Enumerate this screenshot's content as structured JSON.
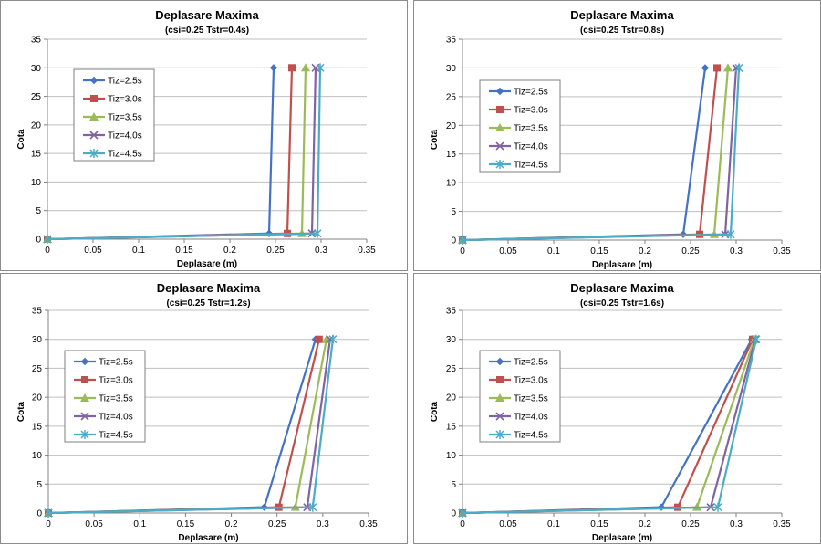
{
  "figure": {
    "styles": [
      {
        "color": "#4472C4",
        "marker": "diamond"
      },
      {
        "color": "#C0504D",
        "marker": "square"
      },
      {
        "color": "#9BBB59",
        "marker": "triangle"
      },
      {
        "color": "#8064A2",
        "marker": "x"
      },
      {
        "color": "#4BACC6",
        "marker": "star"
      }
    ]
  },
  "chart_data": [
    {
      "type": "line",
      "title": "Deplasare Maxima",
      "subtitle": "(csi=0.25  Tstr=0.4s)",
      "xlabel": "Deplasare (m)",
      "ylabel": "Cota",
      "xlim": [
        0,
        0.35
      ],
      "ylim": [
        0,
        35
      ],
      "xticks": [
        "0",
        "0.05",
        "0.1",
        "0.15",
        "0.2",
        "0.25",
        "0.3",
        "0.35"
      ],
      "yticks": [
        "0",
        "5",
        "10",
        "15",
        "20",
        "25",
        "30",
        "35"
      ],
      "grid": "horizontal",
      "legend": "upper-left",
      "series": [
        {
          "name": "Tiz=2.5s",
          "points": [
            [
              0,
              0
            ],
            [
              0.243,
              1
            ],
            [
              0.248,
              30
            ]
          ]
        },
        {
          "name": "Tiz=3.0s",
          "points": [
            [
              0,
              0
            ],
            [
              0.263,
              1
            ],
            [
              0.268,
              30
            ]
          ]
        },
        {
          "name": "Tiz=3.5s",
          "points": [
            [
              0,
              0
            ],
            [
              0.279,
              1
            ],
            [
              0.283,
              30
            ]
          ]
        },
        {
          "name": "Tiz=4.0s",
          "points": [
            [
              0,
              0
            ],
            [
              0.29,
              1
            ],
            [
              0.294,
              30
            ]
          ]
        },
        {
          "name": "Tiz=4.5s",
          "points": [
            [
              0,
              0
            ],
            [
              0.296,
              1
            ],
            [
              0.299,
              30
            ]
          ]
        }
      ]
    },
    {
      "type": "line",
      "title": "Deplasare Maxima",
      "subtitle": "(csi=0.25  Tstr=0.8s)",
      "xlabel": "Deplasare (m)",
      "ylabel": "Cota",
      "xlim": [
        0,
        0.35
      ],
      "ylim": [
        0,
        35
      ],
      "xticks": [
        "0",
        "0.05",
        "0.1",
        "0.15",
        "0.2",
        "0.25",
        "0.3",
        "0.35"
      ],
      "yticks": [
        "0",
        "5",
        "10",
        "15",
        "20",
        "25",
        "30",
        "35"
      ],
      "grid": "horizontal",
      "legend": "upper-left",
      "series": [
        {
          "name": "Tiz=2.5s",
          "points": [
            [
              0,
              0
            ],
            [
              0.242,
              1
            ],
            [
              0.266,
              30
            ]
          ]
        },
        {
          "name": "Tiz=3.0s",
          "points": [
            [
              0,
              0
            ],
            [
              0.26,
              1
            ],
            [
              0.279,
              30
            ]
          ]
        },
        {
          "name": "Tiz=3.5s",
          "points": [
            [
              0,
              0
            ],
            [
              0.276,
              1
            ],
            [
              0.291,
              30
            ]
          ]
        },
        {
          "name": "Tiz=4.0s",
          "points": [
            [
              0,
              0
            ],
            [
              0.288,
              1
            ],
            [
              0.3,
              30
            ]
          ]
        },
        {
          "name": "Tiz=4.5s",
          "points": [
            [
              0,
              0
            ],
            [
              0.294,
              1
            ],
            [
              0.303,
              30
            ]
          ]
        }
      ]
    },
    {
      "type": "line",
      "title": "Deplasare Maxima",
      "subtitle": "(csi=0.25  Tstr=1.2s)",
      "xlabel": "Deplasare (m)",
      "ylabel": "Cota",
      "xlim": [
        0,
        0.35
      ],
      "ylim": [
        0,
        35
      ],
      "xticks": [
        "0",
        "0.05",
        "0.1",
        "0.15",
        "0.2",
        "0.25",
        "0.3",
        "0.35"
      ],
      "yticks": [
        "0",
        "5",
        "10",
        "15",
        "20",
        "25",
        "30",
        "35"
      ],
      "grid": "horizontal",
      "legend": "upper-left",
      "series": [
        {
          "name": "Tiz=2.5s",
          "points": [
            [
              0,
              0
            ],
            [
              0.236,
              1
            ],
            [
              0.292,
              30
            ]
          ]
        },
        {
          "name": "Tiz=3.0s",
          "points": [
            [
              0,
              0
            ],
            [
              0.252,
              1
            ],
            [
              0.296,
              30
            ]
          ]
        },
        {
          "name": "Tiz=3.5s",
          "points": [
            [
              0,
              0
            ],
            [
              0.27,
              1
            ],
            [
              0.304,
              30
            ]
          ]
        },
        {
          "name": "Tiz=4.0s",
          "points": [
            [
              0,
              0
            ],
            [
              0.283,
              1
            ],
            [
              0.308,
              30
            ]
          ]
        },
        {
          "name": "Tiz=4.5s",
          "points": [
            [
              0,
              0
            ],
            [
              0.289,
              1
            ],
            [
              0.311,
              30
            ]
          ]
        }
      ]
    },
    {
      "type": "line",
      "title": "Deplasare Maxima",
      "subtitle": "(csi=0.25  Tstr=1.6s)",
      "xlabel": "Deplasare (m)",
      "ylabel": "Cota",
      "xlim": [
        0,
        0.35
      ],
      "ylim": [
        0,
        35
      ],
      "xticks": [
        "0",
        "0.05",
        "0.1",
        "0.15",
        "0.2",
        "0.25",
        "0.3",
        "0.35"
      ],
      "yticks": [
        "0",
        "5",
        "10",
        "15",
        "20",
        "25",
        "30",
        "35"
      ],
      "grid": "horizontal",
      "legend": "upper-left",
      "series": [
        {
          "name": "Tiz=2.5s",
          "points": [
            [
              0,
              0
            ],
            [
              0.218,
              1
            ],
            [
              0.317,
              30
            ]
          ]
        },
        {
          "name": "Tiz=3.0s",
          "points": [
            [
              0,
              0
            ],
            [
              0.236,
              1
            ],
            [
              0.318,
              30
            ]
          ]
        },
        {
          "name": "Tiz=3.5s",
          "points": [
            [
              0,
              0
            ],
            [
              0.257,
              1
            ],
            [
              0.32,
              30
            ]
          ]
        },
        {
          "name": "Tiz=4.0s",
          "points": [
            [
              0,
              0
            ],
            [
              0.272,
              1
            ],
            [
              0.321,
              30
            ]
          ]
        },
        {
          "name": "Tiz=4.5s",
          "points": [
            [
              0,
              0
            ],
            [
              0.28,
              1
            ],
            [
              0.322,
              30
            ]
          ]
        }
      ]
    }
  ]
}
